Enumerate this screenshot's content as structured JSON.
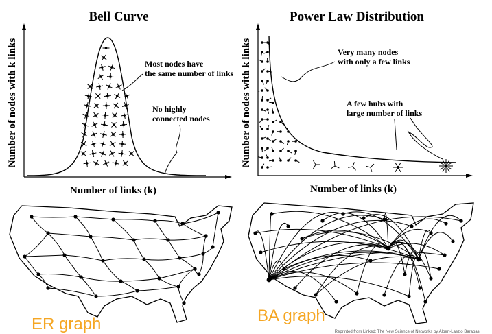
{
  "bell": {
    "title": "Bell Curve",
    "ylabel": "Number of nodes with k links",
    "xlabel": "Number of links (k)",
    "note1_line1": "Most nodes have",
    "note1_line2": "the same number of links",
    "note2_line1": "No highly",
    "note2_line2": "connected nodes"
  },
  "power": {
    "title": "Power Law Distribution",
    "ylabel": "Number of nodes with k links",
    "xlabel": "Number of links (k)",
    "note1_line1": "Very many nodes",
    "note1_line2": "with only a few links",
    "note2_line1": "A few hubs with",
    "note2_line2": "large number of links"
  },
  "maps": {
    "er_label": "ER graph",
    "ba_label": "BA graph",
    "er_color": "#f5a623",
    "ba_color": "#f5a623"
  },
  "credit": "Reprinted from Linked: The New Science of Networks by Albert-Laszlo Barabasi"
}
